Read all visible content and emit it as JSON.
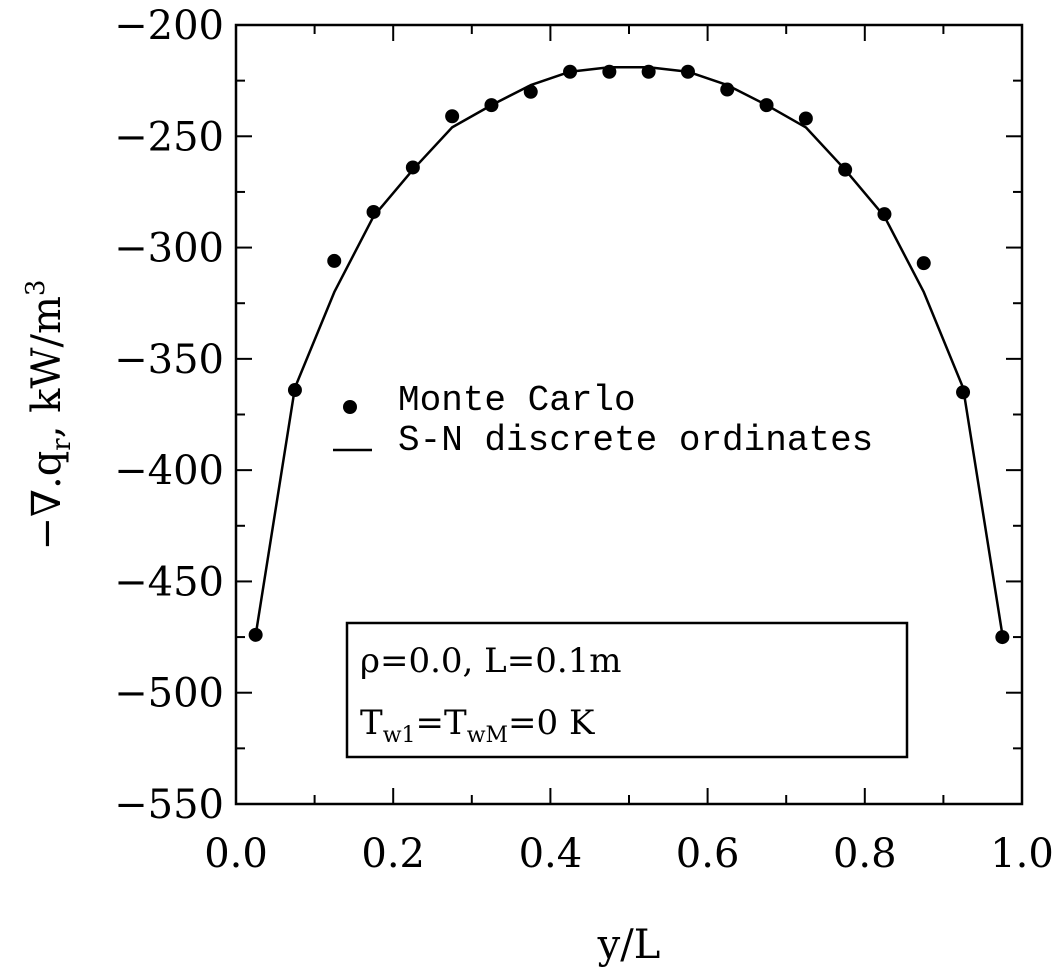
{
  "chart_data": {
    "type": "scatter",
    "xlabel": "y/L",
    "ylabel": "−∇.q",
    "ylabel_sub": "r",
    "ylabel_units": ", kW/m",
    "ylabel_sup": "3",
    "xlim": [
      0.0,
      1.0
    ],
    "ylim": [
      -550,
      -200
    ],
    "x_ticks": [
      "0.0",
      "0.2",
      "0.4",
      "0.6",
      "0.8",
      "1.0"
    ],
    "y_ticks": [
      "-200",
      "-250",
      "-300",
      "-350",
      "-400",
      "-450",
      "-500",
      "-550"
    ],
    "grid": false,
    "series": [
      {
        "name": "Monte Carlo",
        "style": "markers",
        "x": [
          0.025,
          0.075,
          0.125,
          0.175,
          0.225,
          0.275,
          0.325,
          0.375,
          0.425,
          0.475,
          0.525,
          0.575,
          0.625,
          0.675,
          0.725,
          0.775,
          0.825,
          0.875,
          0.925,
          0.975
        ],
        "y": [
          -474,
          -364,
          -306,
          -284,
          -264,
          -241,
          -236,
          -230,
          -221,
          -221,
          -221,
          -221,
          -229,
          -236,
          -242,
          -265,
          -285,
          -307,
          -365,
          -475
        ]
      },
      {
        "name": "S-N discrete ordinates",
        "style": "line",
        "x": [
          0.025,
          0.075,
          0.125,
          0.175,
          0.225,
          0.275,
          0.325,
          0.375,
          0.425,
          0.475,
          0.525,
          0.575,
          0.625,
          0.675,
          0.725,
          0.775,
          0.825,
          0.875,
          0.925,
          0.975
        ],
        "y": [
          -474,
          -363,
          -320,
          -286,
          -265,
          -246,
          -236,
          -227,
          -221,
          -219,
          -219,
          -221,
          -227,
          -236,
          -246,
          -265,
          -286,
          -320,
          -363,
          -474
        ]
      }
    ],
    "legend": {
      "placement": "center-left",
      "marker_label": "Monte Carlo",
      "line_label": "S-N discrete ordinates"
    },
    "annotation": {
      "line1": "ρ=0.0, L=0.1m",
      "line2_parts": [
        "T",
        "w1",
        "=T",
        "wM",
        "=0 K"
      ]
    }
  }
}
